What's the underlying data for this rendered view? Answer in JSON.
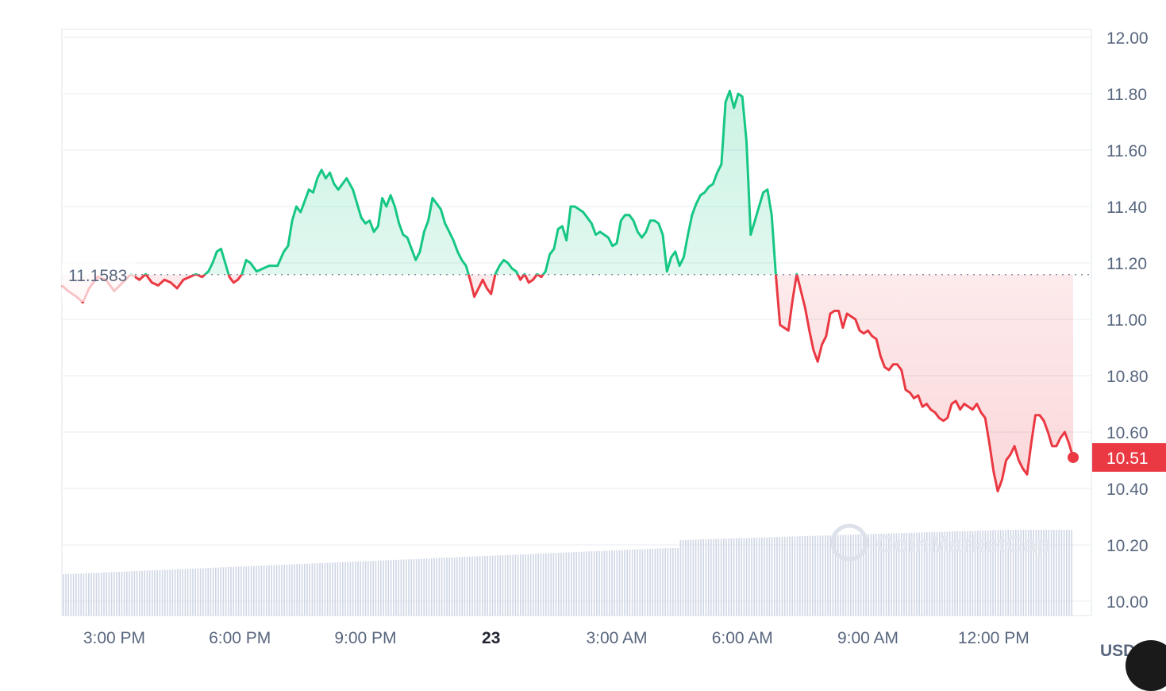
{
  "chart_data": {
    "type": "area",
    "y_unit": "USD",
    "ylim": [
      9.97,
      12.04
    ],
    "y_ticks": [
      "12.00",
      "11.80",
      "11.60",
      "11.40",
      "11.20",
      "11.00",
      "10.80",
      "10.60",
      "10.40",
      "10.20",
      "10.00"
    ],
    "x_ticks": [
      {
        "label": "3:00 PM",
        "hour": 15,
        "bold": false
      },
      {
        "label": "6:00 PM",
        "hour": 18,
        "bold": false
      },
      {
        "label": "9:00 PM",
        "hour": 21,
        "bold": false
      },
      {
        "label": "23",
        "hour": 24,
        "bold": true
      },
      {
        "label": "3:00 AM",
        "hour": 27,
        "bold": false
      },
      {
        "label": "6:00 AM",
        "hour": 30,
        "bold": false
      },
      {
        "label": "9:00 AM",
        "hour": 33,
        "bold": false
      },
      {
        "label": "12:00 PM",
        "hour": 36,
        "bold": false
      }
    ],
    "x_range_hours": [
      13.75,
      37.9
    ],
    "reference_price": 11.1583,
    "reference_label": "11.1583",
    "current_price": 10.51,
    "current_label": "10.51",
    "colors": {
      "up": "#16c784",
      "down": "#ea3943",
      "volume": "#cfd6e4",
      "grid": "#eff2f5"
    },
    "watermark": "CoinMarketCap",
    "price_series": [
      [
        13.75,
        11.12
      ],
      [
        13.9,
        11.1
      ],
      [
        14.1,
        11.08
      ],
      [
        14.25,
        11.06
      ],
      [
        14.4,
        11.11
      ],
      [
        14.6,
        11.15
      ],
      [
        14.8,
        11.14
      ],
      [
        15.0,
        11.1
      ],
      [
        15.2,
        11.13
      ],
      [
        15.4,
        11.16
      ],
      [
        15.6,
        11.14
      ],
      [
        15.75,
        11.16
      ],
      [
        15.9,
        11.13
      ],
      [
        16.05,
        11.12
      ],
      [
        16.2,
        11.14
      ],
      [
        16.35,
        11.13
      ],
      [
        16.5,
        11.11
      ],
      [
        16.65,
        11.14
      ],
      [
        16.8,
        11.15
      ],
      [
        16.95,
        11.16
      ],
      [
        17.1,
        11.15
      ],
      [
        17.25,
        11.17
      ],
      [
        17.35,
        11.2
      ],
      [
        17.45,
        11.24
      ],
      [
        17.55,
        11.25
      ],
      [
        17.65,
        11.2
      ],
      [
        17.75,
        11.15
      ],
      [
        17.85,
        11.13
      ],
      [
        17.95,
        11.14
      ],
      [
        18.05,
        11.16
      ],
      [
        18.15,
        11.21
      ],
      [
        18.25,
        11.2
      ],
      [
        18.4,
        11.17
      ],
      [
        18.55,
        11.18
      ],
      [
        18.7,
        11.19
      ],
      [
        18.9,
        11.19
      ],
      [
        19.05,
        11.24
      ],
      [
        19.15,
        11.26
      ],
      [
        19.25,
        11.35
      ],
      [
        19.35,
        11.4
      ],
      [
        19.45,
        11.38
      ],
      [
        19.55,
        11.42
      ],
      [
        19.65,
        11.46
      ],
      [
        19.75,
        11.45
      ],
      [
        19.85,
        11.5
      ],
      [
        19.95,
        11.53
      ],
      [
        20.05,
        11.5
      ],
      [
        20.15,
        11.52
      ],
      [
        20.25,
        11.48
      ],
      [
        20.35,
        11.46
      ],
      [
        20.45,
        11.48
      ],
      [
        20.55,
        11.5
      ],
      [
        20.7,
        11.46
      ],
      [
        20.8,
        11.41
      ],
      [
        20.9,
        11.36
      ],
      [
        21.0,
        11.34
      ],
      [
        21.1,
        11.35
      ],
      [
        21.2,
        11.31
      ],
      [
        21.3,
        11.33
      ],
      [
        21.4,
        11.43
      ],
      [
        21.5,
        11.4
      ],
      [
        21.6,
        11.44
      ],
      [
        21.7,
        11.4
      ],
      [
        21.8,
        11.34
      ],
      [
        21.9,
        11.3
      ],
      [
        22.0,
        11.29
      ],
      [
        22.1,
        11.25
      ],
      [
        22.2,
        11.21
      ],
      [
        22.3,
        11.24
      ],
      [
        22.4,
        11.31
      ],
      [
        22.5,
        11.35
      ],
      [
        22.6,
        11.43
      ],
      [
        22.7,
        11.41
      ],
      [
        22.8,
        11.39
      ],
      [
        22.9,
        11.34
      ],
      [
        23.0,
        11.31
      ],
      [
        23.1,
        11.28
      ],
      [
        23.2,
        11.24
      ],
      [
        23.3,
        11.21
      ],
      [
        23.4,
        11.19
      ],
      [
        23.5,
        11.14
      ],
      [
        23.6,
        11.08
      ],
      [
        23.7,
        11.11
      ],
      [
        23.8,
        11.14
      ],
      [
        23.9,
        11.11
      ],
      [
        24.0,
        11.09
      ],
      [
        24.1,
        11.16
      ],
      [
        24.2,
        11.19
      ],
      [
        24.3,
        11.21
      ],
      [
        24.4,
        11.2
      ],
      [
        24.5,
        11.18
      ],
      [
        24.6,
        11.17
      ],
      [
        24.7,
        11.14
      ],
      [
        24.8,
        11.16
      ],
      [
        24.9,
        11.13
      ],
      [
        25.0,
        11.14
      ],
      [
        25.1,
        11.16
      ],
      [
        25.2,
        11.15
      ],
      [
        25.3,
        11.17
      ],
      [
        25.4,
        11.23
      ],
      [
        25.5,
        11.25
      ],
      [
        25.6,
        11.32
      ],
      [
        25.7,
        11.33
      ],
      [
        25.8,
        11.28
      ],
      [
        25.9,
        11.4
      ],
      [
        26.0,
        11.4
      ],
      [
        26.1,
        11.39
      ],
      [
        26.2,
        11.38
      ],
      [
        26.3,
        11.36
      ],
      [
        26.4,
        11.34
      ],
      [
        26.5,
        11.3
      ],
      [
        26.6,
        11.31
      ],
      [
        26.7,
        11.3
      ],
      [
        26.8,
        11.29
      ],
      [
        26.9,
        11.26
      ],
      [
        27.0,
        11.27
      ],
      [
        27.1,
        11.35
      ],
      [
        27.2,
        11.37
      ],
      [
        27.3,
        11.37
      ],
      [
        27.4,
        11.35
      ],
      [
        27.5,
        11.31
      ],
      [
        27.6,
        11.29
      ],
      [
        27.7,
        11.31
      ],
      [
        27.8,
        11.35
      ],
      [
        27.9,
        11.35
      ],
      [
        28.0,
        11.34
      ],
      [
        28.1,
        11.3
      ],
      [
        28.2,
        11.17
      ],
      [
        28.3,
        11.22
      ],
      [
        28.4,
        11.24
      ],
      [
        28.5,
        11.19
      ],
      [
        28.6,
        11.22
      ],
      [
        28.7,
        11.3
      ],
      [
        28.8,
        11.37
      ],
      [
        28.9,
        11.41
      ],
      [
        29.0,
        11.44
      ],
      [
        29.1,
        11.45
      ],
      [
        29.2,
        11.47
      ],
      [
        29.3,
        11.48
      ],
      [
        29.4,
        11.52
      ],
      [
        29.5,
        11.55
      ],
      [
        29.6,
        11.77
      ],
      [
        29.7,
        11.81
      ],
      [
        29.8,
        11.75
      ],
      [
        29.9,
        11.8
      ],
      [
        30.0,
        11.79
      ],
      [
        30.1,
        11.63
      ],
      [
        30.2,
        11.3
      ],
      [
        30.3,
        11.35
      ],
      [
        30.4,
        11.4
      ],
      [
        30.5,
        11.45
      ],
      [
        30.6,
        11.46
      ],
      [
        30.7,
        11.37
      ],
      [
        30.8,
        11.16
      ],
      [
        30.9,
        10.98
      ],
      [
        31.0,
        10.97
      ],
      [
        31.1,
        10.96
      ],
      [
        31.2,
        11.07
      ],
      [
        31.3,
        11.16
      ],
      [
        31.4,
        11.1
      ],
      [
        31.5,
        11.04
      ],
      [
        31.6,
        10.96
      ],
      [
        31.7,
        10.89
      ],
      [
        31.8,
        10.85
      ],
      [
        31.9,
        10.91
      ],
      [
        32.0,
        10.94
      ],
      [
        32.1,
        11.02
      ],
      [
        32.2,
        11.03
      ],
      [
        32.3,
        11.03
      ],
      [
        32.4,
        10.97
      ],
      [
        32.5,
        11.02
      ],
      [
        32.6,
        11.01
      ],
      [
        32.7,
        11.0
      ],
      [
        32.8,
        10.96
      ],
      [
        32.9,
        10.95
      ],
      [
        33.0,
        10.96
      ],
      [
        33.1,
        10.94
      ],
      [
        33.2,
        10.93
      ],
      [
        33.3,
        10.87
      ],
      [
        33.4,
        10.83
      ],
      [
        33.5,
        10.82
      ],
      [
        33.6,
        10.84
      ],
      [
        33.7,
        10.84
      ],
      [
        33.8,
        10.82
      ],
      [
        33.9,
        10.75
      ],
      [
        34.0,
        10.74
      ],
      [
        34.1,
        10.72
      ],
      [
        34.2,
        10.73
      ],
      [
        34.3,
        10.69
      ],
      [
        34.4,
        10.7
      ],
      [
        34.5,
        10.68
      ],
      [
        34.6,
        10.67
      ],
      [
        34.7,
        10.65
      ],
      [
        34.8,
        10.64
      ],
      [
        34.9,
        10.65
      ],
      [
        35.0,
        10.7
      ],
      [
        35.1,
        10.71
      ],
      [
        35.2,
        10.68
      ],
      [
        35.3,
        10.7
      ],
      [
        35.4,
        10.69
      ],
      [
        35.5,
        10.68
      ],
      [
        35.6,
        10.7
      ],
      [
        35.7,
        10.67
      ],
      [
        35.8,
        10.65
      ],
      [
        35.9,
        10.56
      ],
      [
        36.0,
        10.46
      ],
      [
        36.1,
        10.39
      ],
      [
        36.2,
        10.43
      ],
      [
        36.3,
        10.5
      ],
      [
        36.4,
        10.52
      ],
      [
        36.5,
        10.55
      ],
      [
        36.6,
        10.5
      ],
      [
        36.7,
        10.47
      ],
      [
        36.8,
        10.45
      ],
      [
        36.9,
        10.56
      ],
      [
        37.0,
        10.66
      ],
      [
        37.1,
        10.66
      ],
      [
        37.2,
        10.64
      ],
      [
        37.3,
        10.6
      ],
      [
        37.4,
        10.55
      ],
      [
        37.5,
        10.55
      ],
      [
        37.6,
        10.58
      ],
      [
        37.7,
        10.6
      ],
      [
        37.75,
        10.58
      ],
      [
        37.8,
        10.56
      ],
      [
        37.9,
        10.51
      ]
    ]
  }
}
